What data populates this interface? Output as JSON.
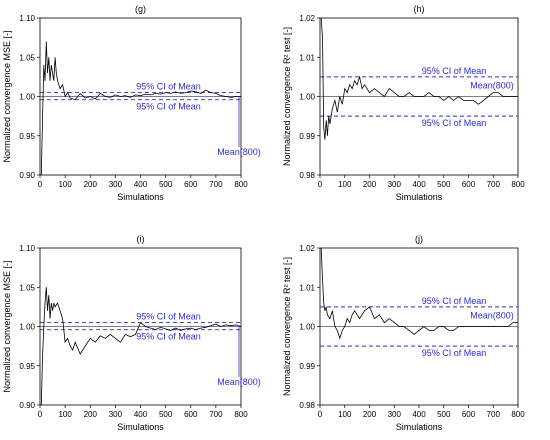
{
  "chart_data": [
    {
      "panel": "(g)",
      "type": "line",
      "title": "(g)",
      "xlabel": "Simulations",
      "ylabel": "Normalized convergence MSE [-]",
      "xlim": [
        0,
        800
      ],
      "ylim": [
        0.9,
        1.1
      ],
      "xticks": [
        0,
        100,
        200,
        300,
        400,
        500,
        600,
        700,
        800
      ],
      "yticks": [
        0.9,
        0.95,
        1.0,
        1.05,
        1.1
      ],
      "ytick_labels": [
        "0.90",
        "0.95",
        "1.00",
        "1.05",
        "1.10"
      ],
      "ci_upper": 1.005,
      "ci_lower": 0.996,
      "mean": 1.0,
      "annotations": [
        "95% CI of Mean",
        "95% CI of Mean",
        "Mean(800)"
      ],
      "series": [
        {
          "x": [
            5,
            10,
            15,
            20,
            25,
            30,
            35,
            40,
            45,
            50,
            55,
            60,
            65,
            70,
            80,
            90,
            100,
            110,
            120,
            140,
            160,
            180,
            200,
            220,
            240,
            260,
            280,
            300,
            320,
            340,
            360,
            380,
            400,
            420,
            440,
            460,
            480,
            500,
            520,
            540,
            560,
            580,
            600,
            620,
            640,
            660,
            680,
            700,
            720,
            740,
            760,
            780,
            800
          ],
          "y": [
            0.9,
            0.97,
            1.04,
            1.02,
            1.07,
            1.03,
            1.05,
            1.02,
            1.04,
            1.03,
            1.02,
            1.05,
            1.03,
            1.02,
            1.01,
            1.015,
            1.0,
            1.005,
            0.998,
            0.996,
            1.004,
            0.998,
            1.0,
            0.997,
            1.004,
            1.0,
            0.999,
            1.002,
            1.0,
            1.001,
            0.999,
            1.002,
            1.001,
            1.003,
            1.002,
            1.004,
            1.003,
            1.005,
            1.004,
            1.006,
            1.004,
            1.005,
            1.007,
            1.006,
            1.004,
            1.008,
            1.005,
            1.004,
            1.001,
            1.0,
            0.999,
            1.0,
            1.0
          ]
        }
      ]
    },
    {
      "panel": "(h)",
      "type": "line",
      "title": "(h)",
      "xlabel": "Simulations",
      "ylabel": "Normalized convergence R² test [-]",
      "xlim": [
        0,
        800
      ],
      "ylim": [
        0.98,
        1.02
      ],
      "xticks": [
        0,
        100,
        200,
        300,
        400,
        500,
        600,
        700,
        800
      ],
      "yticks": [
        0.98,
        0.99,
        1.0,
        1.01,
        1.02
      ],
      "ytick_labels": [
        "0.98",
        "0.99",
        "1.00",
        "1.01",
        "1.02"
      ],
      "ci_upper": 1.005,
      "ci_lower": 0.995,
      "mean": 1.0,
      "annotations": [
        "95% CI of Mean",
        "95% CI of Mean",
        "Mean(800)"
      ],
      "series": [
        {
          "x": [
            5,
            10,
            15,
            20,
            25,
            30,
            35,
            40,
            50,
            60,
            70,
            80,
            90,
            100,
            110,
            120,
            130,
            140,
            150,
            160,
            170,
            180,
            200,
            220,
            240,
            260,
            280,
            300,
            320,
            340,
            360,
            380,
            400,
            420,
            440,
            460,
            480,
            500,
            520,
            540,
            560,
            580,
            600,
            620,
            640,
            660,
            680,
            700,
            720,
            740,
            760,
            780,
            800
          ],
          "y": [
            1.02,
            1.015,
            0.992,
            0.989,
            0.994,
            0.99,
            0.995,
            0.993,
            0.997,
            0.999,
            0.996,
            1.0,
            0.998,
            1.002,
            1.001,
            1.003,
            1.002,
            1.004,
            1.003,
            1.005,
            1.002,
            1.003,
            1.001,
            1.002,
            1.001,
            1.0,
            1.002,
            1.001,
            1.0,
            1.0,
            1.001,
            1.0,
            1.0,
            1.0,
            1.001,
            1.0,
            1.0,
            0.999,
            1.0,
            0.999,
            1.0,
            0.999,
            0.999,
            0.999,
            0.998,
            0.999,
            1.0,
            1.001,
            1.001,
            1.0,
            1.0,
            1.0,
            1.0
          ]
        }
      ]
    },
    {
      "panel": "(i)",
      "type": "line",
      "title": "(i)",
      "xlabel": "Simulations",
      "ylabel": "Normalized convergence MSE [-]",
      "xlim": [
        0,
        800
      ],
      "ylim": [
        0.9,
        1.1
      ],
      "xticks": [
        0,
        100,
        200,
        300,
        400,
        500,
        600,
        700,
        800
      ],
      "yticks": [
        0.9,
        0.95,
        1.0,
        1.05,
        1.1
      ],
      "ytick_labels": [
        "0.90",
        "0.95",
        "1.00",
        "1.05",
        "1.10"
      ],
      "ci_upper": 1.005,
      "ci_lower": 0.996,
      "mean": 1.0,
      "annotations": [
        "95% CI of Mean",
        "95% CI of Mean",
        "Mean(800)"
      ],
      "series": [
        {
          "x": [
            5,
            10,
            15,
            20,
            25,
            30,
            35,
            40,
            45,
            50,
            55,
            60,
            70,
            80,
            90,
            100,
            110,
            120,
            130,
            140,
            160,
            180,
            200,
            220,
            240,
            260,
            280,
            300,
            320,
            340,
            360,
            380,
            400,
            420,
            440,
            460,
            480,
            500,
            520,
            540,
            560,
            580,
            600,
            620,
            640,
            660,
            680,
            700,
            720,
            740,
            760,
            780,
            800
          ],
          "y": [
            0.9,
            0.96,
            1.0,
            1.03,
            1.05,
            1.02,
            1.04,
            1.01,
            1.03,
            1.02,
            1.03,
            1.025,
            1.03,
            1.02,
            1.01,
            0.98,
            0.985,
            0.975,
            0.97,
            0.98,
            0.965,
            0.975,
            0.985,
            0.98,
            0.988,
            0.985,
            0.99,
            0.985,
            0.98,
            0.99,
            0.987,
            0.99,
            1.005,
            1.0,
            0.998,
            0.996,
            0.999,
            0.997,
            0.995,
            0.998,
            0.995,
            0.997,
            0.998,
            0.996,
            0.998,
            0.999,
            1.001,
            1.003,
            1.0,
            1.002,
            1.001,
            1.002,
            1.0
          ]
        }
      ]
    },
    {
      "panel": "(j)",
      "type": "line",
      "title": "(j)",
      "xlabel": "Simulations",
      "ylabel": "Normalized convergence R² test [-]",
      "xlim": [
        0,
        800
      ],
      "ylim": [
        0.98,
        1.02
      ],
      "xticks": [
        0,
        100,
        200,
        300,
        400,
        500,
        600,
        700,
        800
      ],
      "yticks": [
        0.98,
        0.99,
        1.0,
        1.01,
        1.02
      ],
      "ytick_labels": [
        "0.98",
        "0.99",
        "1.00",
        "1.01",
        "1.02"
      ],
      "ci_upper": 1.005,
      "ci_lower": 0.995,
      "mean": 1.0,
      "annotations": [
        "95% CI of Mean",
        "95% CI of Mean",
        "Mean(800)"
      ],
      "series": [
        {
          "x": [
            5,
            10,
            15,
            20,
            25,
            30,
            40,
            50,
            60,
            70,
            80,
            90,
            100,
            110,
            120,
            130,
            140,
            160,
            180,
            200,
            220,
            240,
            260,
            280,
            300,
            320,
            340,
            360,
            380,
            400,
            420,
            440,
            460,
            480,
            500,
            520,
            540,
            560,
            580,
            600,
            620,
            640,
            660,
            680,
            700,
            720,
            740,
            760,
            780,
            800
          ],
          "y": [
            1.02,
            1.012,
            1.006,
            1.004,
            1.005,
            1.003,
            1.002,
            1.004,
            1.0,
            0.999,
            0.997,
            0.999,
            1.0,
            1.002,
            1.001,
            1.003,
            1.004,
            1.002,
            1.004,
            1.005,
            1.002,
            1.003,
            1.001,
            1.002,
            1.001,
            1.0,
            1.0,
            0.999,
            0.998,
            0.999,
            1.0,
            0.999,
            0.999,
            1.0,
            1.0,
            0.999,
            0.999,
            1.0,
            1.0,
            1.0,
            1.0,
            1.0,
            1.0,
            1.0,
            1.0,
            1.0,
            1.0,
            1.0,
            1.001,
            1.001
          ]
        }
      ]
    }
  ]
}
